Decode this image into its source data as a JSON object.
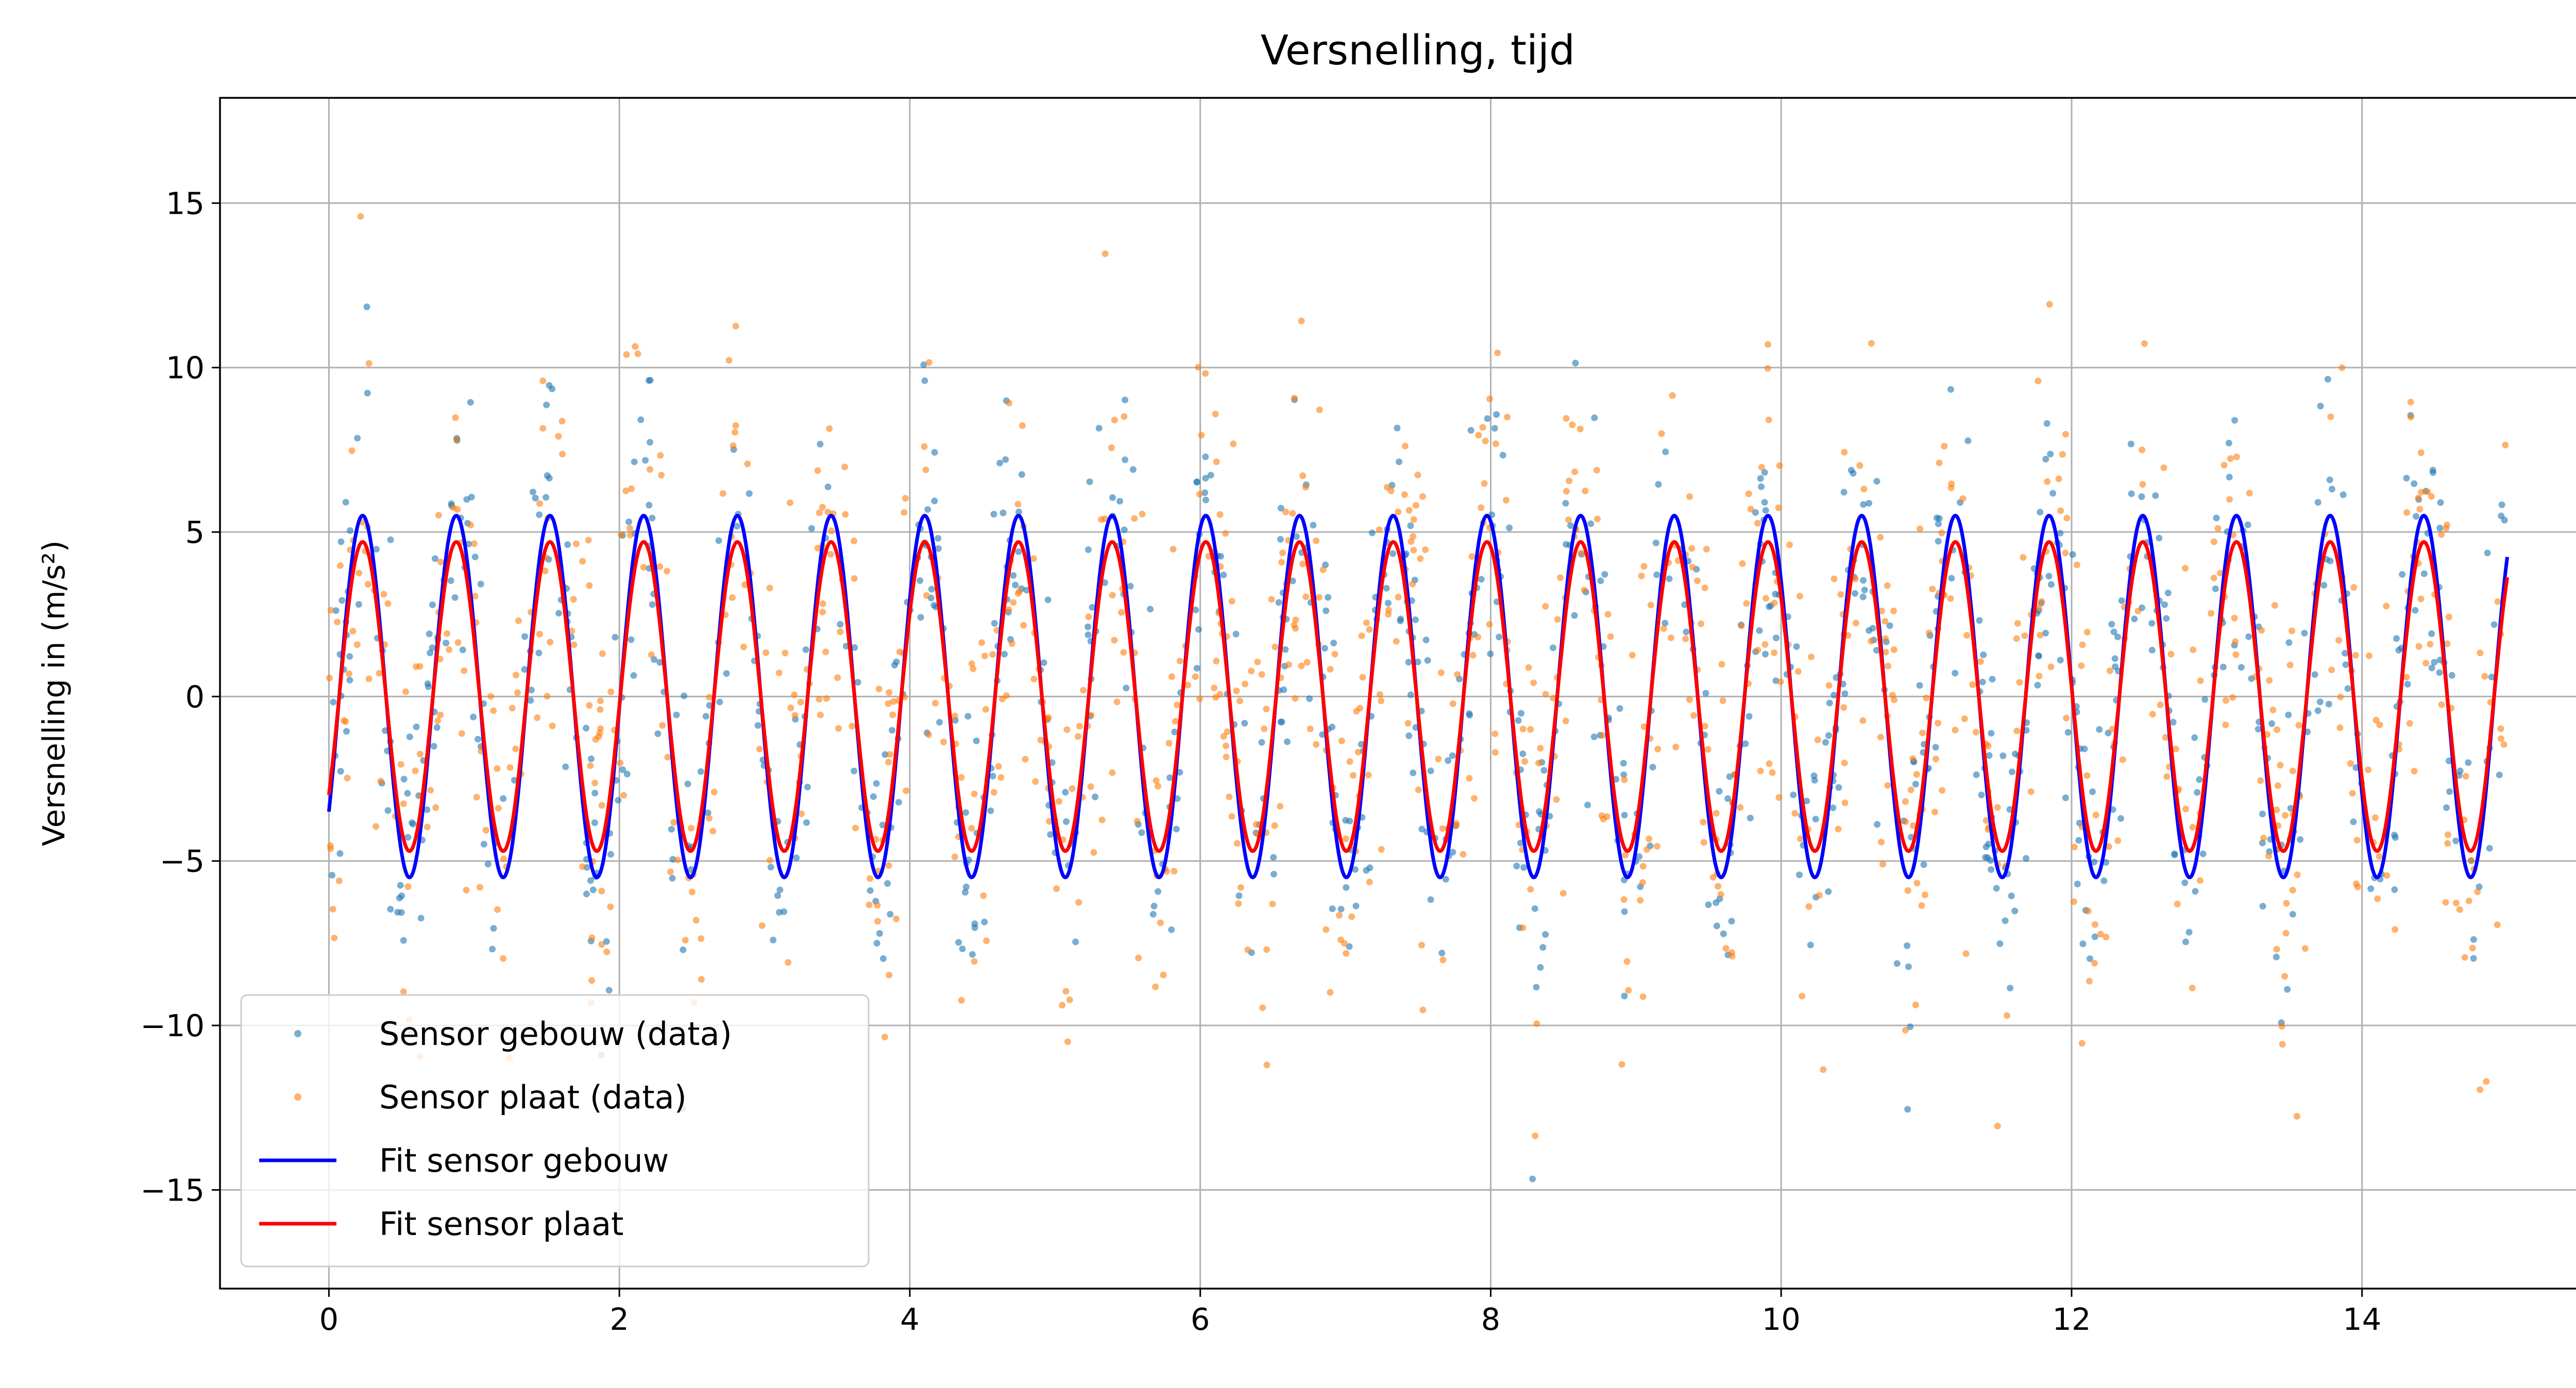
{
  "chart_data": {
    "type": "scatter",
    "title": "Versnelling, tijd",
    "xlabel": "",
    "ylabel": "Versnelling in (m/s²)",
    "xlim": [
      -0.75,
      15.75
    ],
    "ylim": [
      -18,
      18.2
    ],
    "x_ticks": [
      0,
      2,
      4,
      6,
      8,
      10,
      12,
      14
    ],
    "x_tick_labels": [
      "0",
      "2",
      "4",
      "6",
      "8",
      "10",
      "12",
      "14"
    ],
    "y_ticks": [
      15,
      10,
      5,
      0,
      -5,
      -10,
      -15
    ],
    "y_tick_labels": [
      "15",
      "10",
      "5",
      "0",
      "−5",
      "−10",
      "−15"
    ],
    "grid": true,
    "legend": "lower-left",
    "series": [
      {
        "name": "Sensor gebouw (data)",
        "kind": "scatter",
        "color": "#1f77b4",
        "sampling": {
          "x_start": 0,
          "x_end": 15,
          "count": 1000
        },
        "model": {
          "amplitude": 5.5,
          "frequency_hz": 1.55,
          "phase_rad": -0.69,
          "noise_sd": 2.3
        }
      },
      {
        "name": "Sensor plaat (data)",
        "kind": "scatter",
        "color": "#ff7f0e",
        "sampling": {
          "x_start": 0,
          "x_end": 15,
          "count": 1000
        },
        "model": {
          "amplitude": 4.7,
          "frequency_hz": 1.55,
          "phase_rad": -0.69,
          "noise_sd": 3.5
        }
      },
      {
        "name": "Fit sensor gebouw",
        "kind": "line",
        "color": "#0000ff",
        "function": "y = 5.5*sin(2*pi*1.55*x - 0.69)",
        "x_range": [
          0,
          15
        ]
      },
      {
        "name": "Fit sensor plaat",
        "kind": "line",
        "color": "#ff0000",
        "function": "y = 4.7*sin(2*pi*1.55*x - 0.69)",
        "x_range": [
          0,
          15
        ]
      }
    ]
  }
}
